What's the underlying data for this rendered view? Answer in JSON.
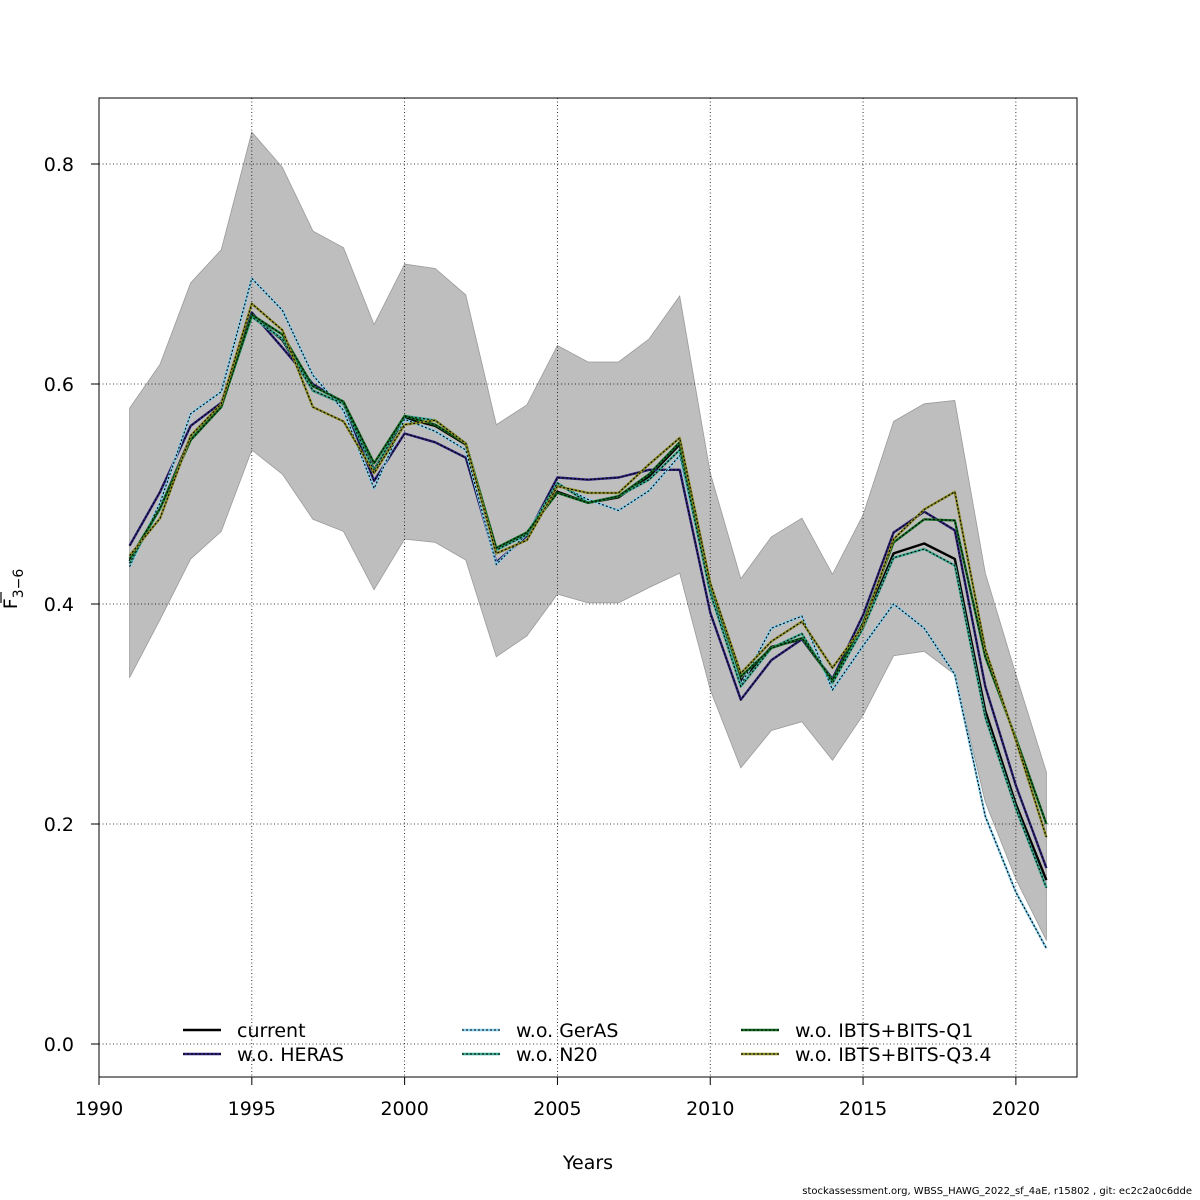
{
  "chart_data": {
    "type": "line",
    "xlabel": "Years",
    "ylabel_main": "F",
    "ylabel_sub": "3−6",
    "xlim": [
      1990,
      2022
    ],
    "ylim": [
      -0.03,
      0.86
    ],
    "x_ticks": [
      1990,
      1995,
      2000,
      2005,
      2010,
      2015,
      2020
    ],
    "y_ticks": [
      0.0,
      0.2,
      0.4,
      0.6,
      0.8
    ],
    "x_tick_labels": [
      "1990",
      "1995",
      "2000",
      "2005",
      "2010",
      "2015",
      "2020"
    ],
    "y_tick_labels": [
      "0.0",
      "0.2",
      "0.4",
      "0.6",
      "0.8"
    ],
    "grid": true,
    "legend_position": "bottom",
    "x": [
      1991,
      1992,
      1993,
      1994,
      1995,
      1996,
      1997,
      1998,
      1999,
      2000,
      2001,
      2002,
      2003,
      2004,
      2005,
      2006,
      2007,
      2008,
      2009,
      2010,
      2011,
      2012,
      2013,
      2014,
      2015,
      2016,
      2017,
      2018,
      2019,
      2020,
      2021
    ],
    "band": {
      "color": "#bebebe",
      "upper": [
        0.578,
        0.618,
        0.692,
        0.722,
        0.829,
        0.797,
        0.739,
        0.724,
        0.654,
        0.709,
        0.705,
        0.681,
        0.563,
        0.581,
        0.635,
        0.62,
        0.62,
        0.641,
        0.68,
        0.519,
        0.423,
        0.461,
        0.478,
        0.427,
        0.481,
        0.566,
        0.582,
        0.585,
        0.428,
        0.336,
        0.247
      ],
      "lower": [
        0.333,
        0.386,
        0.441,
        0.466,
        0.54,
        0.518,
        0.477,
        0.466,
        0.413,
        0.459,
        0.456,
        0.44,
        0.352,
        0.371,
        0.409,
        0.401,
        0.401,
        0.415,
        0.428,
        0.322,
        0.251,
        0.285,
        0.293,
        0.258,
        0.299,
        0.353,
        0.357,
        0.336,
        0.22,
        0.15,
        0.094
      ]
    },
    "series": [
      {
        "name": "current",
        "color": "#000000",
        "dashed": false,
        "values": [
          0.439,
          0.487,
          0.552,
          0.582,
          0.663,
          0.64,
          0.594,
          0.582,
          0.522,
          0.569,
          0.562,
          0.545,
          0.45,
          0.464,
          0.502,
          0.492,
          0.497,
          0.516,
          0.545,
          0.412,
          0.33,
          0.361,
          0.368,
          0.331,
          0.38,
          0.446,
          0.455,
          0.441,
          0.303,
          0.218,
          0.149
        ]
      },
      {
        "name": "w.o. HERAS",
        "color": "#2b2178",
        "dashed": true,
        "values": [
          0.453,
          0.502,
          0.562,
          0.583,
          0.665,
          0.633,
          0.6,
          0.583,
          0.512,
          0.555,
          0.547,
          0.533,
          0.438,
          0.462,
          0.515,
          0.513,
          0.515,
          0.522,
          0.522,
          0.392,
          0.313,
          0.349,
          0.368,
          0.332,
          0.39,
          0.465,
          0.484,
          0.467,
          0.325,
          0.235,
          0.16
        ]
      },
      {
        "name": "w.o. GerAS",
        "color": "#87ceeb",
        "dashed": true,
        "values": [
          0.434,
          0.492,
          0.573,
          0.593,
          0.696,
          0.667,
          0.608,
          0.576,
          0.505,
          0.568,
          0.557,
          0.54,
          0.436,
          0.464,
          0.509,
          0.495,
          0.485,
          0.503,
          0.535,
          0.415,
          0.326,
          0.378,
          0.389,
          0.322,
          0.362,
          0.4,
          0.378,
          0.336,
          0.207,
          0.138,
          0.087
        ]
      },
      {
        "name": "w.o. N20",
        "color": "#3aa88f",
        "dashed": true,
        "values": [
          0.437,
          0.487,
          0.55,
          0.58,
          0.661,
          0.641,
          0.594,
          0.582,
          0.521,
          0.571,
          0.567,
          0.546,
          0.449,
          0.463,
          0.51,
          0.492,
          0.498,
          0.513,
          0.54,
          0.41,
          0.325,
          0.36,
          0.373,
          0.328,
          0.378,
          0.442,
          0.45,
          0.435,
          0.297,
          0.214,
          0.142
        ]
      },
      {
        "name": "w.o. IBTS+BITS-Q1",
        "color": "#116d23",
        "dashed": true,
        "values": [
          0.441,
          0.487,
          0.549,
          0.579,
          0.663,
          0.645,
          0.598,
          0.584,
          0.528,
          0.571,
          0.563,
          0.546,
          0.451,
          0.465,
          0.501,
          0.492,
          0.498,
          0.518,
          0.547,
          0.418,
          0.334,
          0.36,
          0.369,
          0.331,
          0.383,
          0.456,
          0.477,
          0.476,
          0.352,
          0.278,
          0.2
        ]
      },
      {
        "name": "w.o. IBTS+BITS-Q3.4",
        "color": "#8c8c26",
        "dashed": true,
        "values": [
          0.444,
          0.478,
          0.553,
          0.582,
          0.673,
          0.649,
          0.579,
          0.566,
          0.519,
          0.563,
          0.567,
          0.546,
          0.446,
          0.458,
          0.507,
          0.501,
          0.501,
          0.527,
          0.551,
          0.419,
          0.337,
          0.366,
          0.384,
          0.342,
          0.38,
          0.459,
          0.486,
          0.502,
          0.359,
          0.276,
          0.188
        ]
      }
    ]
  },
  "footer_text": "stockassessment.org, WBSS_HAWG_2022_sf_4aE, r15802 , git: ec2c2a0c6dde"
}
